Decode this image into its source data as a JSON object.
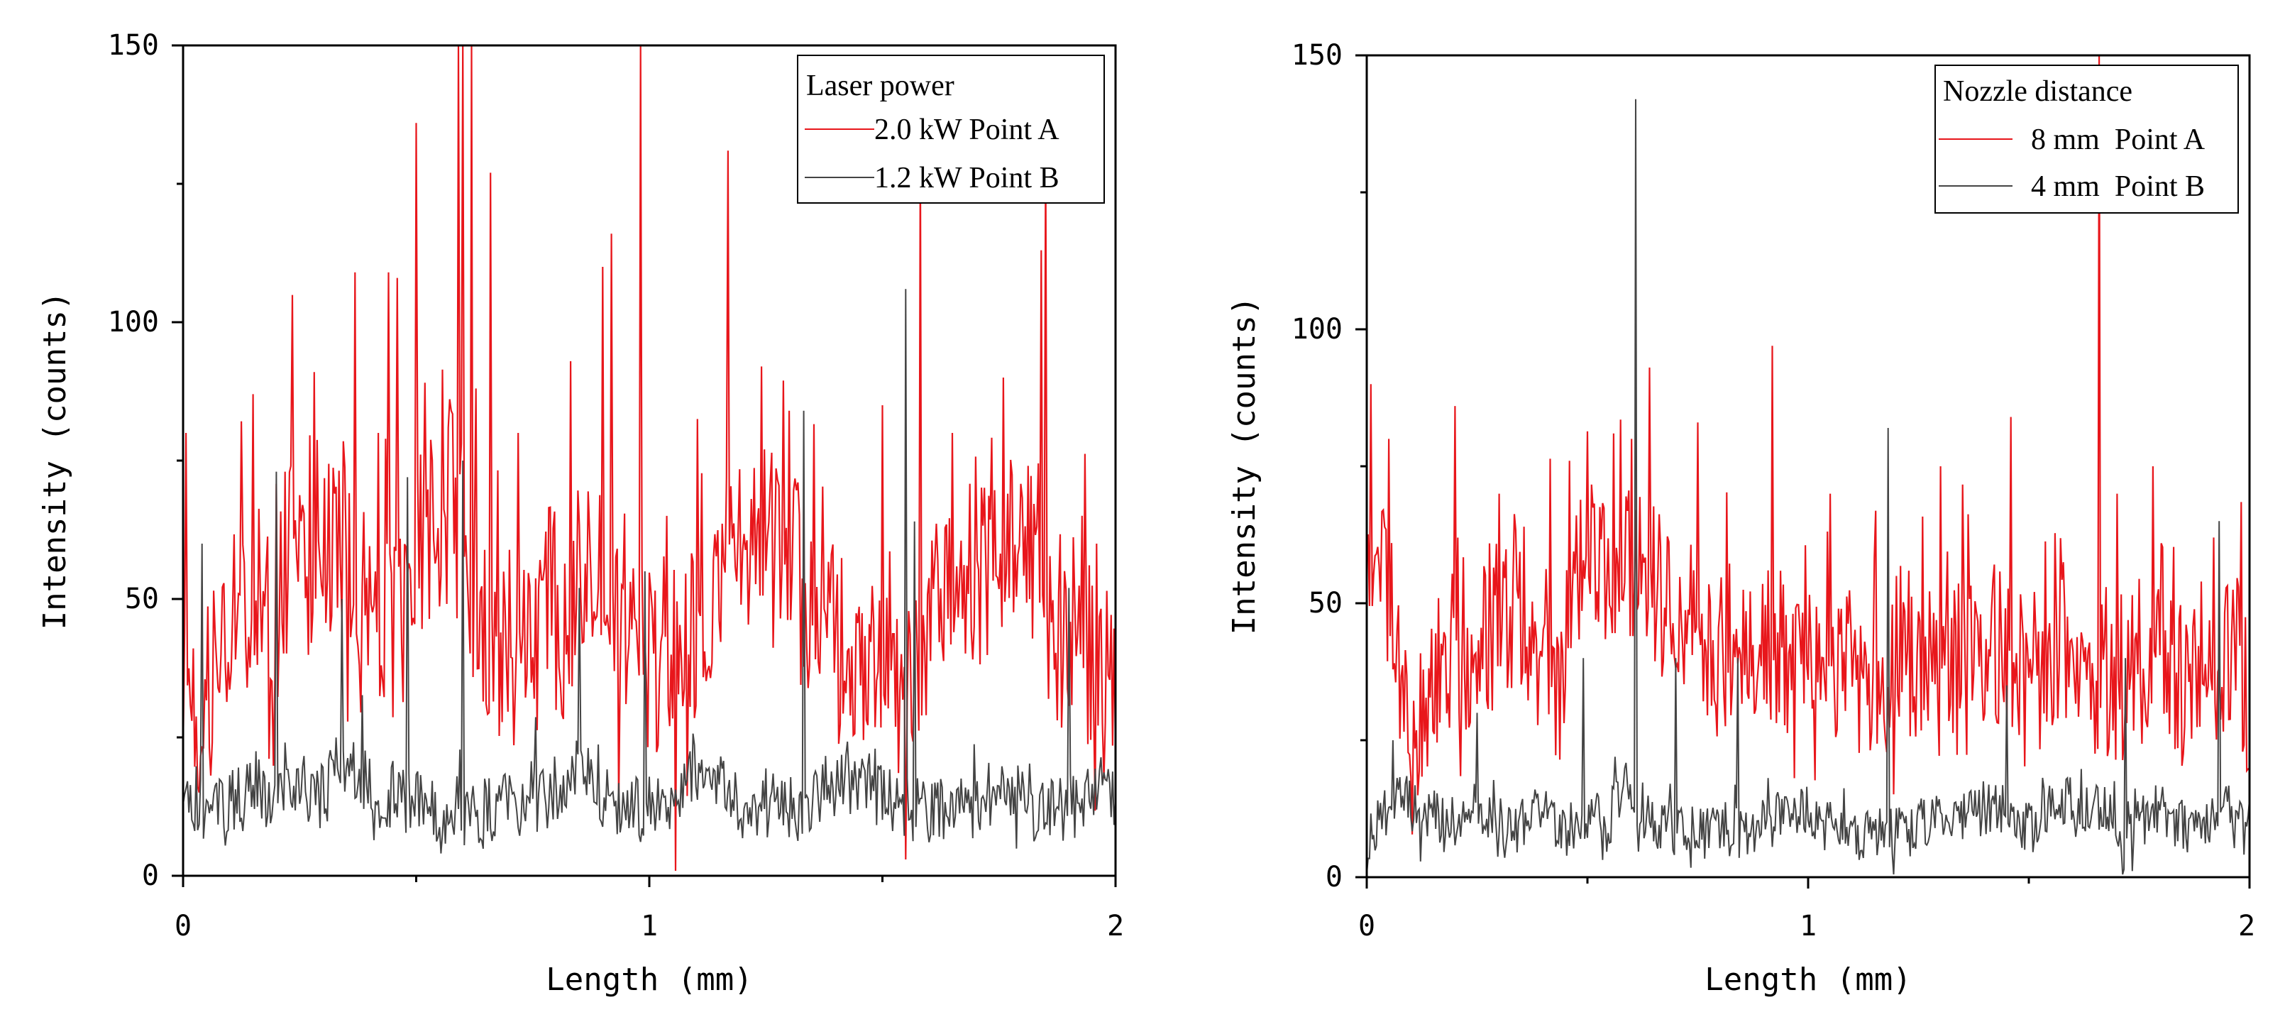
{
  "chart_data": [
    {
      "type": "line",
      "title": "",
      "xlabel": "Length (mm)",
      "ylabel": "Intensity (counts)",
      "xlim": [
        0,
        2
      ],
      "ylim": [
        0,
        150
      ],
      "xticks": [
        "0",
        "1",
        "2"
      ],
      "yticks": [
        "0",
        "50",
        "100",
        "150"
      ],
      "legend_title": "Laser power",
      "legend_position": "top-right",
      "series": [
        {
          "name": "2.0 kW Point A",
          "color": "#e8161b",
          "points": 641,
          "baseline": [
            32,
            34,
            30,
            30,
            36,
            40,
            44,
            38,
            36,
            46,
            50,
            54,
            46,
            44,
            52,
            58,
            60,
            56,
            56,
            52,
            60,
            58,
            66,
            64,
            56,
            54,
            50,
            52,
            48,
            46,
            46,
            44,
            46,
            52,
            58,
            60,
            64,
            62,
            66,
            70,
            60,
            64,
            50,
            50,
            46,
            44,
            42,
            42,
            40,
            40,
            40,
            42,
            46,
            52,
            46,
            46,
            50,
            56,
            60,
            58,
            58,
            52,
            52,
            48,
            48,
            44,
            42,
            40,
            40,
            40,
            40,
            38,
            40,
            40,
            44,
            48,
            52,
            54,
            56,
            62,
            60,
            56,
            54,
            60,
            62,
            60,
            60,
            56,
            58,
            54,
            50,
            46,
            46,
            48,
            44,
            40,
            40,
            40,
            40,
            38,
            36,
            36,
            36,
            34,
            34,
            36,
            38,
            42,
            44,
            46,
            48,
            50,
            52,
            54,
            56,
            56,
            54,
            60,
            60,
            58,
            60,
            64,
            62,
            60,
            56,
            50,
            46,
            44,
            44,
            42,
            40,
            40,
            40,
            40,
            38,
            38
          ],
          "peaks": [
            [
              0.005,
              80
            ],
            [
              0.15,
              87
            ],
            [
              0.22,
              73
            ],
            [
              0.28,
              91
            ],
            [
              0.37,
              109
            ],
            [
              0.42,
              80
            ],
            [
              0.44,
              109
            ],
            [
              0.46,
              108
            ],
            [
              0.5,
              136
            ],
            [
              0.59,
              150
            ],
            [
              0.6,
              150
            ],
            [
              0.62,
              150
            ],
            [
              0.66,
              127
            ],
            [
              0.72,
              80
            ],
            [
              0.9,
              110
            ],
            [
              0.92,
              116
            ],
            [
              0.98,
              150
            ],
            [
              1.17,
              131
            ],
            [
              1.24,
              92
            ],
            [
              1.3,
              84
            ],
            [
              1.5,
              85
            ],
            [
              1.58,
              130
            ],
            [
              1.65,
              80
            ],
            [
              1.76,
              90
            ],
            [
              1.84,
              113
            ],
            [
              1.85,
              130
            ],
            [
              1.96,
              60
            ]
          ],
          "noise": 18,
          "seed": 7
        },
        {
          "name": "1.2 kW Point B",
          "color": "#444444",
          "points": 641,
          "baseline": [
            16,
            14,
            14,
            12,
            12,
            12,
            10,
            14,
            14,
            14,
            18,
            16,
            14,
            12,
            16,
            16,
            18,
            16,
            16,
            14,
            14,
            16,
            20,
            18,
            20,
            18,
            18,
            16,
            14,
            14,
            14,
            16,
            16,
            14,
            14,
            12,
            12,
            10,
            10,
            12,
            14,
            12,
            10,
            12,
            12,
            12,
            14,
            14,
            14,
            12,
            14,
            16,
            14,
            14,
            16,
            16,
            18,
            18,
            16,
            16,
            14,
            14,
            12,
            12,
            12,
            12,
            12,
            12,
            14,
            14,
            14,
            14,
            16,
            18,
            20,
            18,
            18,
            16,
            18,
            16,
            16,
            16,
            14,
            12,
            14,
            14,
            14,
            12,
            12,
            12,
            12,
            14,
            14,
            16,
            16,
            18,
            16,
            16,
            16,
            16,
            18,
            16,
            14,
            14,
            14,
            12,
            12,
            12,
            12,
            12,
            12,
            14,
            14,
            12,
            12,
            14,
            14,
            16,
            16,
            14,
            14,
            14,
            12,
            12,
            12,
            12,
            12,
            12,
            12,
            14,
            14,
            14,
            16,
            16,
            16,
            14
          ],
          "peaks": [
            [
              0.04,
              60
            ],
            [
              0.2,
              73
            ],
            [
              0.34,
              50
            ],
            [
              0.48,
              72
            ],
            [
              0.6,
              75
            ],
            [
              0.85,
              52
            ],
            [
              0.99,
              55
            ],
            [
              1.33,
              84
            ],
            [
              1.55,
              106
            ],
            [
              1.57,
              64
            ],
            [
              1.9,
              52
            ]
          ],
          "noise": 6,
          "seed": 13
        }
      ]
    },
    {
      "type": "line",
      "title": "",
      "xlabel": "Length (mm)",
      "ylabel": "Intensity (counts)",
      "xlim": [
        0,
        2
      ],
      "ylim": [
        0,
        150
      ],
      "xticks": [
        "0",
        "1",
        "2"
      ],
      "yticks": [
        "0",
        "50",
        "100",
        "150"
      ],
      "legend_title": "Nozzle distance",
      "legend_position": "top-right",
      "series": [
        {
          "name": "8 mm  Point A",
          "color": "#e8161b",
          "points": 641,
          "baseline": [
            65,
            62,
            58,
            55,
            55,
            45,
            30,
            22,
            26,
            30,
            28,
            34,
            40,
            42,
            46,
            46,
            42,
            40,
            38,
            42,
            40,
            44,
            46,
            48,
            52,
            50,
            48,
            44,
            42,
            40,
            34,
            36,
            40,
            52,
            56,
            58,
            60,
            58,
            58,
            58,
            56,
            54,
            56,
            58,
            60,
            56,
            52,
            52,
            50,
            48,
            48,
            46,
            46,
            44,
            44,
            42,
            40,
            42,
            44,
            46,
            44,
            44,
            42,
            44,
            46,
            44,
            40,
            40,
            40,
            42,
            44,
            46,
            42,
            40,
            40,
            38,
            38,
            38,
            36,
            36,
            36,
            34,
            34,
            36,
            36,
            40,
            42,
            42,
            40,
            40,
            38,
            38,
            38,
            36,
            36,
            38,
            38,
            38,
            40,
            40,
            40,
            42,
            40,
            40,
            38,
            36,
            36,
            36,
            38,
            38,
            38,
            40,
            42,
            44,
            40,
            40,
            38,
            36,
            36,
            36,
            36,
            36,
            38,
            38,
            38,
            40,
            40,
            40,
            38,
            36,
            34,
            34,
            36,
            38,
            40,
            40,
            40,
            40,
            38,
            40,
            40,
            36,
            34
          ],
          "peaks": [
            [
              0.01,
              90
            ],
            [
              0.05,
              80
            ],
            [
              0.2,
              86
            ],
            [
              0.3,
              70
            ],
            [
              0.46,
              76
            ],
            [
              0.56,
              81
            ],
            [
              0.6,
              80
            ],
            [
              0.75,
              83
            ],
            [
              0.92,
              97
            ],
            [
              1.05,
              70
            ],
            [
              1.3,
              75
            ],
            [
              1.46,
              84
            ],
            [
              1.66,
              150
            ],
            [
              1.7,
              70
            ],
            [
              1.78,
              75
            ],
            [
              1.92,
              62
            ]
          ],
          "noise": 16,
          "seed": 21
        },
        {
          "name": "4 mm  Point B",
          "color": "#444444",
          "points": 641,
          "baseline": [
            8,
            8,
            10,
            12,
            14,
            14,
            14,
            12,
            12,
            12,
            12,
            10,
            10,
            10,
            8,
            10,
            12,
            14,
            12,
            10,
            10,
            10,
            10,
            8,
            10,
            10,
            12,
            12,
            10,
            10,
            8,
            8,
            10,
            10,
            12,
            12,
            10,
            10,
            12,
            14,
            16,
            14,
            12,
            12,
            10,
            10,
            10,
            8,
            8,
            8,
            8,
            8,
            8,
            10,
            10,
            10,
            8,
            8,
            8,
            8,
            10,
            10,
            10,
            10,
            12,
            12,
            12,
            12,
            10,
            10,
            10,
            10,
            10,
            10,
            10,
            8,
            8,
            8,
            8,
            8,
            8,
            8,
            8,
            8,
            8,
            10,
            10,
            10,
            10,
            10,
            10,
            10,
            10,
            12,
            12,
            12,
            12,
            12,
            12,
            10,
            10,
            10,
            10,
            10,
            12,
            12,
            12,
            14,
            14,
            12,
            12,
            12,
            12,
            12,
            12,
            10,
            10,
            10,
            10,
            10,
            10,
            12,
            12,
            12,
            10,
            10,
            10,
            8,
            8,
            8,
            10,
            10,
            12,
            12,
            12,
            12,
            10
          ],
          "peaks": [
            [
              0.06,
              25
            ],
            [
              0.25,
              30
            ],
            [
              0.49,
              40
            ],
            [
              0.61,
              142
            ],
            [
              0.7,
              40
            ],
            [
              0.84,
              40
            ],
            [
              1.18,
              82
            ],
            [
              1.45,
              35
            ],
            [
              1.72,
              40
            ],
            [
              1.93,
              65
            ]
          ],
          "noise": 5,
          "seed": 31
        }
      ]
    }
  ]
}
